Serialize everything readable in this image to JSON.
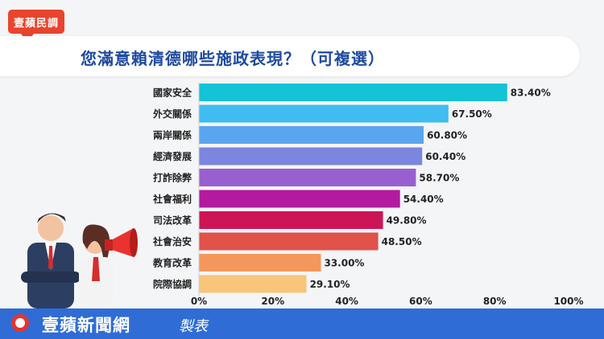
{
  "badge": {
    "label": "壹蘋民調"
  },
  "title": "您滿意賴清德哪些施政表現？（可複選）",
  "footer": {
    "brand": "壹蘋新聞網",
    "suffix": "製表"
  },
  "colors": {
    "accent": "#e8442e",
    "title": "#1e4aa0",
    "footer": "#2f6cd6"
  },
  "chart_data": {
    "type": "bar",
    "orientation": "horizontal",
    "categories": [
      "國家安全",
      "外交關係",
      "兩岸關係",
      "經濟發展",
      "打詐除弊",
      "社會福利",
      "司法改革",
      "社會治安",
      "教育改革",
      "院際協調"
    ],
    "values": [
      83.4,
      67.5,
      60.8,
      60.4,
      58.7,
      54.4,
      49.8,
      48.5,
      33.0,
      29.1
    ],
    "value_labels": [
      "83.40%",
      "67.50%",
      "60.80%",
      "60.40%",
      "58.70%",
      "54.40%",
      "49.80%",
      "48.50%",
      "33.00%",
      "29.10%"
    ],
    "bar_colors": [
      "#14c3d6",
      "#3fbdf0",
      "#5aa6ee",
      "#7b86df",
      "#9a5fcf",
      "#b31a9e",
      "#cc1557",
      "#e0524a",
      "#f4975a",
      "#f9c57a"
    ],
    "xlim": [
      0,
      100
    ],
    "x_ticks": [
      "0%",
      "20%",
      "40%",
      "60%",
      "80%",
      "100%"
    ],
    "grid": false,
    "legend": "none"
  }
}
